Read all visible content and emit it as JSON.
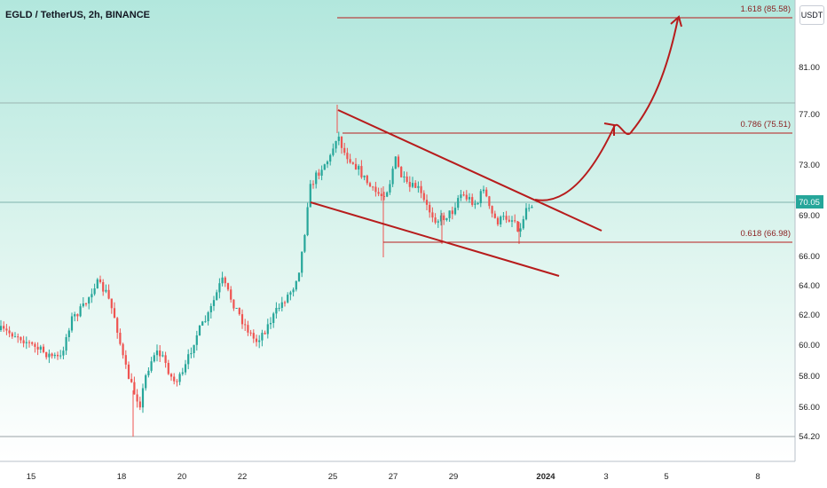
{
  "header": {
    "symbol_line": "EGLD / TetherUS, 2h, BINANCE",
    "currency_button": "USDT"
  },
  "colors": {
    "background_top": "#b2e7dd",
    "background_bottom": "#ffffff",
    "candle_up": "#26a69a",
    "candle_down": "#ef5350",
    "drawing": "#b71c1c",
    "price_tag": "#26a69a"
  },
  "chart_data": {
    "type": "candlestick",
    "title": "EGLD / TetherUS, 2h, BINANCE",
    "x_tick_labels": [
      "15",
      "18",
      "20",
      "22",
      "25",
      "27",
      "29",
      "2024",
      "3",
      "5",
      "8"
    ],
    "y_tick_labels": [
      "54.20",
      "56.00",
      "58.00",
      "60.00",
      "62.00",
      "64.00",
      "66.00",
      "69.00",
      "73.00",
      "77.00",
      "81.00"
    ],
    "current_price": "70.05",
    "fib_levels": [
      {
        "label": "1.618 (85.58)",
        "value": 85.58
      },
      {
        "label": "0.786 (75.51)",
        "value": 75.51
      },
      {
        "label": "0.618 (66.98)",
        "value": 66.98
      }
    ],
    "horizontal_lines": [
      79.0,
      70.05,
      54.2
    ],
    "pattern": "falling wedge with projected breakout",
    "grid": false
  }
}
